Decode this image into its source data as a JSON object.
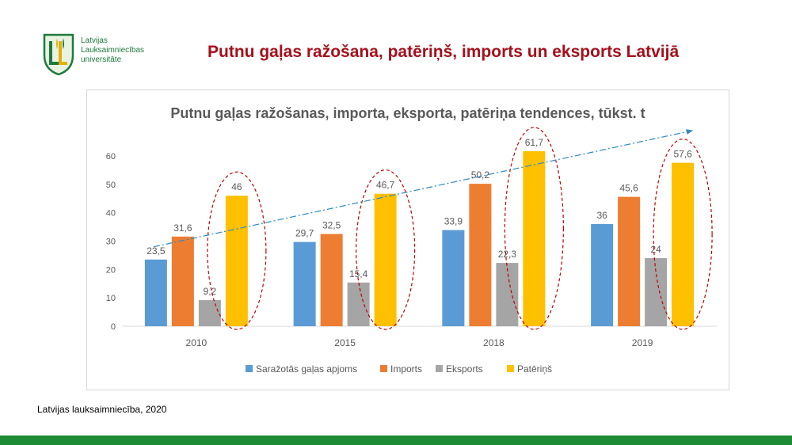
{
  "logo": {
    "lines": [
      "Latvijas",
      "Lauksaimniecības",
      "universitāte"
    ],
    "brand_color": "#1e7a3c"
  },
  "slide_title": "Putnu gaļas ražošana, patēriņš, imports un eksports Latvijā",
  "source": "Latvijas lauksaimniecība, 2020",
  "colors": {
    "title": "#a50f1b",
    "bottom_bar": "#1d8a36"
  },
  "chart_data": {
    "type": "bar",
    "title": "Putnu gaļas ražošanas, importa, eksporta, patēriņa tendences, tūkst. t",
    "categories": [
      "2010",
      "2015",
      "2018",
      "2019"
    ],
    "series": [
      {
        "name": "Saražotās gaļas apjoms",
        "values": [
          23.5,
          29.7,
          33.9,
          36
        ],
        "labels": [
          "23,5",
          "29,7",
          "33,9",
          "36"
        ],
        "color": "#5b9bd5"
      },
      {
        "name": "Imports",
        "values": [
          31.6,
          32.5,
          50.2,
          45.6
        ],
        "labels": [
          "31,6",
          "32,5",
          "50,2",
          "45,6"
        ],
        "color": "#ed7d31"
      },
      {
        "name": "Eksports",
        "values": [
          9.2,
          15.4,
          22.3,
          24
        ],
        "labels": [
          "9,2",
          "15,4",
          "22,3",
          "24"
        ],
        "color": "#a5a5a5"
      },
      {
        "name": "Patēriņš",
        "values": [
          46,
          46.7,
          61.7,
          57.6
        ],
        "labels": [
          "46",
          "46,7",
          "61,7",
          "57,6"
        ],
        "color": "#ffc000"
      }
    ],
    "ylim": [
      0,
      60
    ],
    "yticks": [
      0,
      10,
      20,
      30,
      40,
      50,
      60
    ],
    "grid": false,
    "legend_position": "bottom",
    "annotations": {
      "trend_arrow": "dash-dot blue arrow rising from 2010 to 2019 across consumption bars",
      "highlight": "red dashed ellipses around Patēriņš bars"
    }
  }
}
